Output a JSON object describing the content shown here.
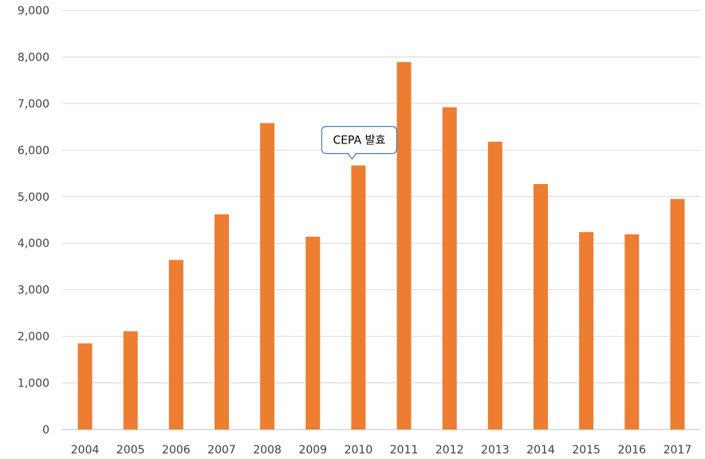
{
  "chart_data": {
    "type": "bar",
    "title": "",
    "xlabel": "",
    "ylabel": "",
    "categories": [
      "2004",
      "2005",
      "2006",
      "2007",
      "2008",
      "2009",
      "2010",
      "2011",
      "2012",
      "2013",
      "2014",
      "2015",
      "2016",
      "2017"
    ],
    "values": [
      1850,
      2110,
      3640,
      4620,
      6580,
      4140,
      5670,
      7890,
      6920,
      6180,
      5270,
      4240,
      4190,
      4950
    ],
    "ylim": [
      0,
      9000
    ],
    "yticks": [
      0,
      1000,
      2000,
      3000,
      4000,
      5000,
      6000,
      7000,
      8000,
      9000
    ],
    "ytick_labels": [
      "0",
      "1,000",
      "2,000",
      "3,000",
      "4,000",
      "5,000",
      "6,000",
      "7,000",
      "8,000",
      "9,000"
    ],
    "grid": true,
    "legend": "none",
    "bar_color": "#ED7D31",
    "annotations": [
      {
        "text": "CEPA 발효",
        "category": "2010"
      }
    ]
  }
}
